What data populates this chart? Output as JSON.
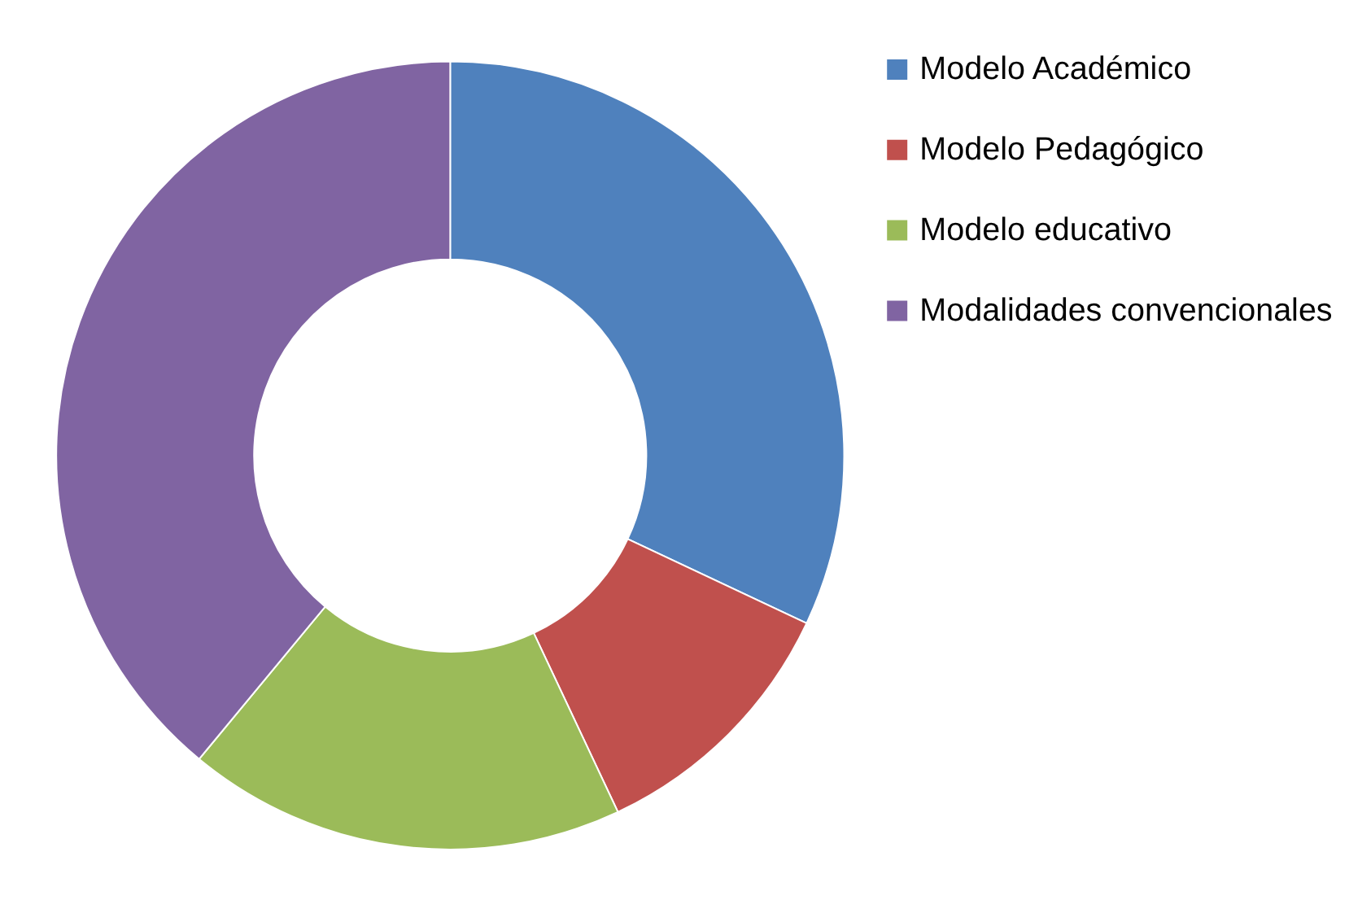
{
  "chart_data": {
    "type": "donut",
    "categories": [
      "Modelo Académico",
      "Modelo Pedagógico",
      "Modelo educativo",
      "Modalidades convencionales"
    ],
    "values": [
      32,
      11,
      18,
      39
    ],
    "colors": [
      "#4f81bd",
      "#c0504d",
      "#9bbb59",
      "#8064a2"
    ],
    "legend": "right"
  }
}
